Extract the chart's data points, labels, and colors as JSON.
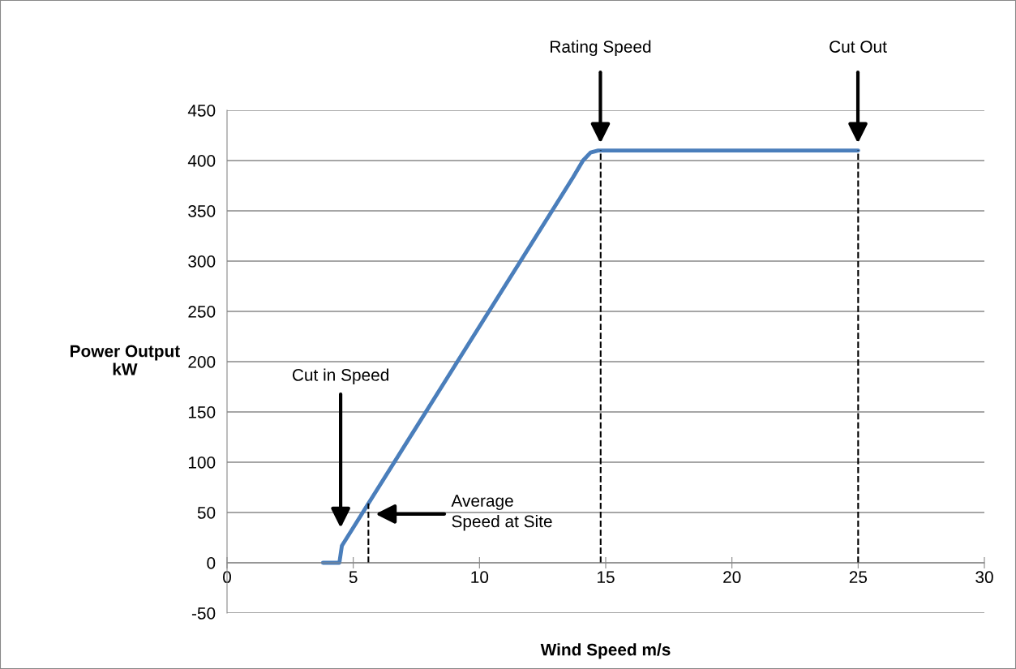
{
  "chart_data": {
    "type": "line",
    "xlabel": "Wind Speed m/s",
    "ylabel": "Power Output\nkW",
    "xlim": [
      0,
      30
    ],
    "xticks": [
      0,
      5,
      10,
      15,
      20,
      25,
      30
    ],
    "ylim": [
      -50,
      450
    ],
    "yticks": [
      -50,
      0,
      50,
      100,
      150,
      200,
      250,
      300,
      350,
      400,
      450
    ],
    "grid": "y",
    "marker": "none",
    "line_style": "solid",
    "series": [
      {
        "color": "#4a7ebb",
        "x": [
          3.8,
          4.45,
          4.55,
          9.25,
          13.7,
          14.1,
          14.4,
          14.7,
          25
        ],
        "values": [
          0,
          0,
          17,
          205,
          383,
          400,
          408,
          410,
          410
        ]
      }
    ],
    "ref_lines": [
      {
        "axis": "x",
        "value": 5.6,
        "line_style": "dashed",
        "color": "#000000"
      },
      {
        "axis": "x",
        "value": 14.8,
        "line_style": "dashed",
        "color": "#000000"
      },
      {
        "axis": "x",
        "value": 25,
        "line_style": "dashed",
        "color": "#000000"
      }
    ],
    "annotations": [
      "Cut in Speed",
      "Average\nSpeed at Site",
      "Rating Speed",
      "Cut Out"
    ]
  }
}
